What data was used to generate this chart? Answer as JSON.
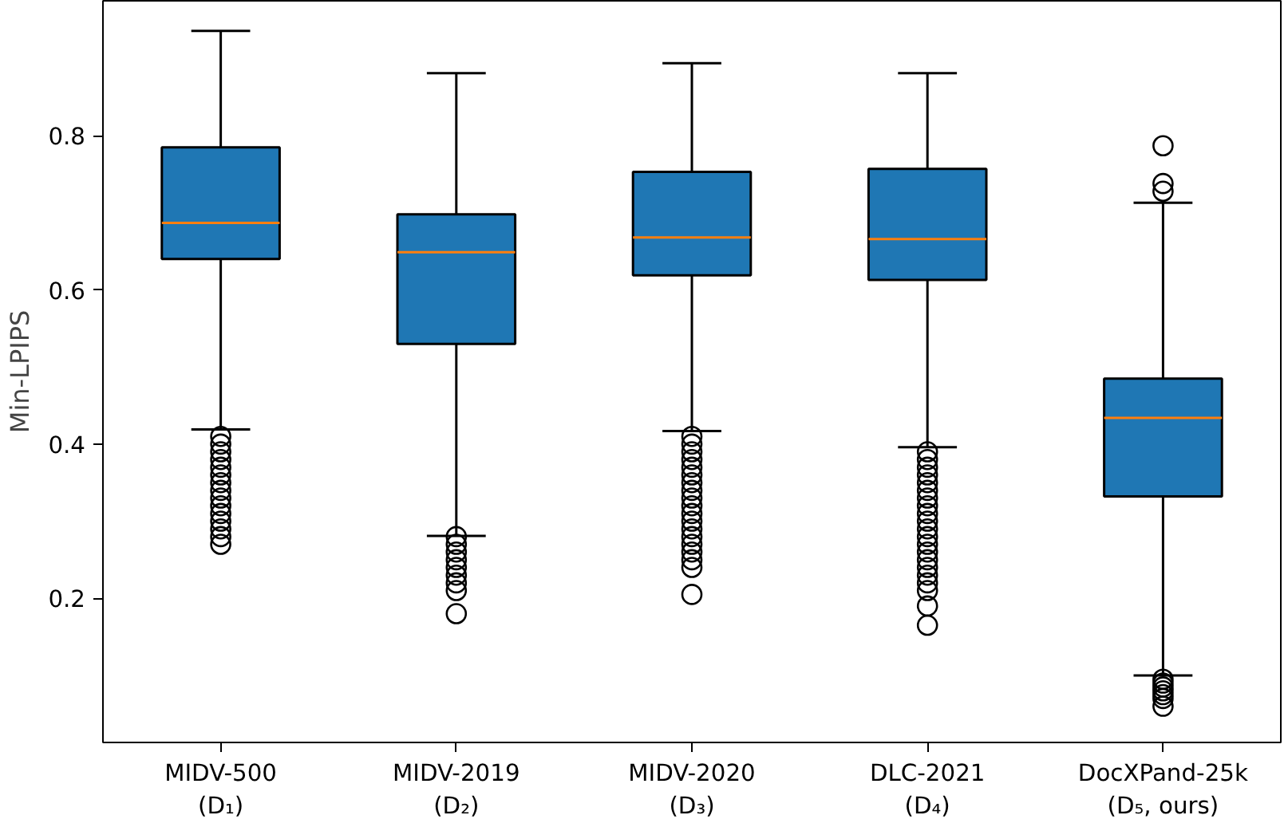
{
  "chart_data": {
    "type": "box",
    "ylabel": "Min-LPIPS",
    "categories": [
      "MIDV-500\n(D₁)",
      "MIDV-2019\n(D₂)",
      "MIDV-2020\n(D₃)",
      "DLC-2021\n(D₄)",
      "DocXPand-25k\n(D₅, ours)"
    ],
    "series": [
      {
        "color": "#1f77b4",
        "boxes": [
          {
            "low": 0.419,
            "q1": 0.64,
            "median": 0.687,
            "q3": 0.785,
            "high": 0.936,
            "outliers": [
              0.41,
              0.4,
              0.39,
              0.38,
              0.37,
              0.36,
              0.35,
              0.34,
              0.33,
              0.32,
              0.31,
              0.3,
              0.29,
              0.28,
              0.27
            ]
          },
          {
            "low": 0.281,
            "q1": 0.53,
            "median": 0.649,
            "q3": 0.698,
            "high": 0.881,
            "outliers": [
              0.28,
              0.27,
              0.26,
              0.25,
              0.24,
              0.23,
              0.22,
              0.21,
              0.18
            ]
          },
          {
            "low": 0.417,
            "q1": 0.619,
            "median": 0.668,
            "q3": 0.753,
            "high": 0.894,
            "outliers": [
              0.41,
              0.4,
              0.39,
              0.38,
              0.37,
              0.36,
              0.35,
              0.34,
              0.33,
              0.32,
              0.31,
              0.3,
              0.29,
              0.28,
              0.27,
              0.26,
              0.25,
              0.24,
              0.205
            ]
          },
          {
            "low": 0.396,
            "q1": 0.613,
            "median": 0.666,
            "q3": 0.757,
            "high": 0.881,
            "outliers": [
              0.39,
              0.38,
              0.37,
              0.36,
              0.35,
              0.34,
              0.33,
              0.32,
              0.31,
              0.3,
              0.29,
              0.28,
              0.27,
              0.26,
              0.25,
              0.24,
              0.23,
              0.22,
              0.21,
              0.19,
              0.165
            ]
          },
          {
            "low": 0.1,
            "q1": 0.332,
            "median": 0.434,
            "q3": 0.485,
            "high": 0.713,
            "outliers": [
              0.787,
              0.738,
              0.728,
              0.095,
              0.09,
              0.085,
              0.08,
              0.075,
              0.07,
              0.06
            ]
          }
        ]
      }
    ],
    "ylim": [
      0.013,
      0.975
    ],
    "yticks": [
      0.2,
      0.4,
      0.6,
      0.8
    ],
    "grid": false
  }
}
